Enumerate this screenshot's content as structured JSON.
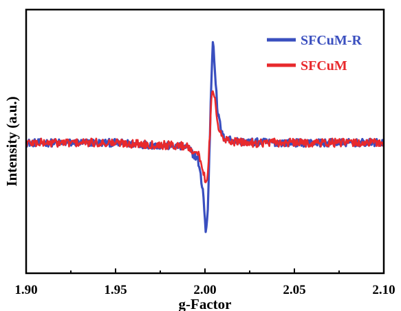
{
  "chart_data": {
    "type": "line",
    "title": "",
    "xlabel": "g-Factor",
    "ylabel": "Intensity (a.u.)",
    "xlim": [
      1.9,
      2.1
    ],
    "ylim": [
      -1.0,
      1.0
    ],
    "x_ticks": [
      "1.90",
      "1.95",
      "2.00",
      "2.05",
      "2.10"
    ],
    "y_ticks_shown": false,
    "grid": false,
    "legend_position": "top-right",
    "series": [
      {
        "name": "SFCuM-R",
        "color": "#3a4fbf",
        "x": [
          1.9,
          1.95,
          1.99,
          1.996,
          1.999,
          2.0005,
          2.0015,
          2.0025,
          2.0035,
          2.0045,
          2.0055,
          2.007,
          2.01,
          2.02,
          2.05,
          2.1
        ],
        "y": [
          0.0,
          0.0,
          -0.04,
          -0.15,
          -0.45,
          -0.85,
          -0.65,
          -0.1,
          0.55,
          0.98,
          0.7,
          0.28,
          0.05,
          0.01,
          0.0,
          0.0
        ],
        "noise": 0.035
      },
      {
        "name": "SFCuM",
        "color": "#e8292c",
        "x": [
          1.9,
          1.95,
          1.99,
          1.996,
          1.999,
          2.0005,
          2.0015,
          2.0025,
          2.0035,
          2.0045,
          2.0055,
          2.007,
          2.01,
          2.02,
          2.05,
          2.1
        ],
        "y": [
          0.0,
          0.0,
          -0.03,
          -0.1,
          -0.25,
          -0.37,
          -0.28,
          0.0,
          0.35,
          0.52,
          0.4,
          0.16,
          0.03,
          0.0,
          0.0,
          0.0
        ],
        "noise": 0.04
      }
    ]
  }
}
